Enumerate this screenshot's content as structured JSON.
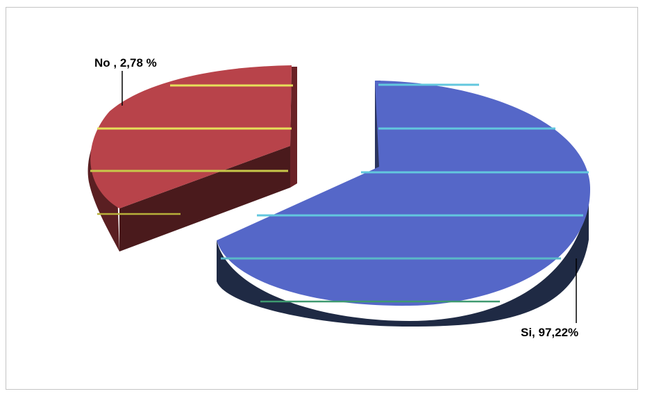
{
  "chart_data": {
    "type": "pie",
    "categories": [
      "No",
      "Si"
    ],
    "values": [
      2.78,
      97.22
    ],
    "labels": [
      "No , 2,78 %",
      "Si, 97,22%"
    ],
    "title": "",
    "three_d": true,
    "exploded": true,
    "colors": {
      "No": "#b8434a",
      "Si": "#5567c8"
    },
    "stripe_colors": {
      "No": "#e6e05a",
      "Si": "#62c7de"
    }
  }
}
